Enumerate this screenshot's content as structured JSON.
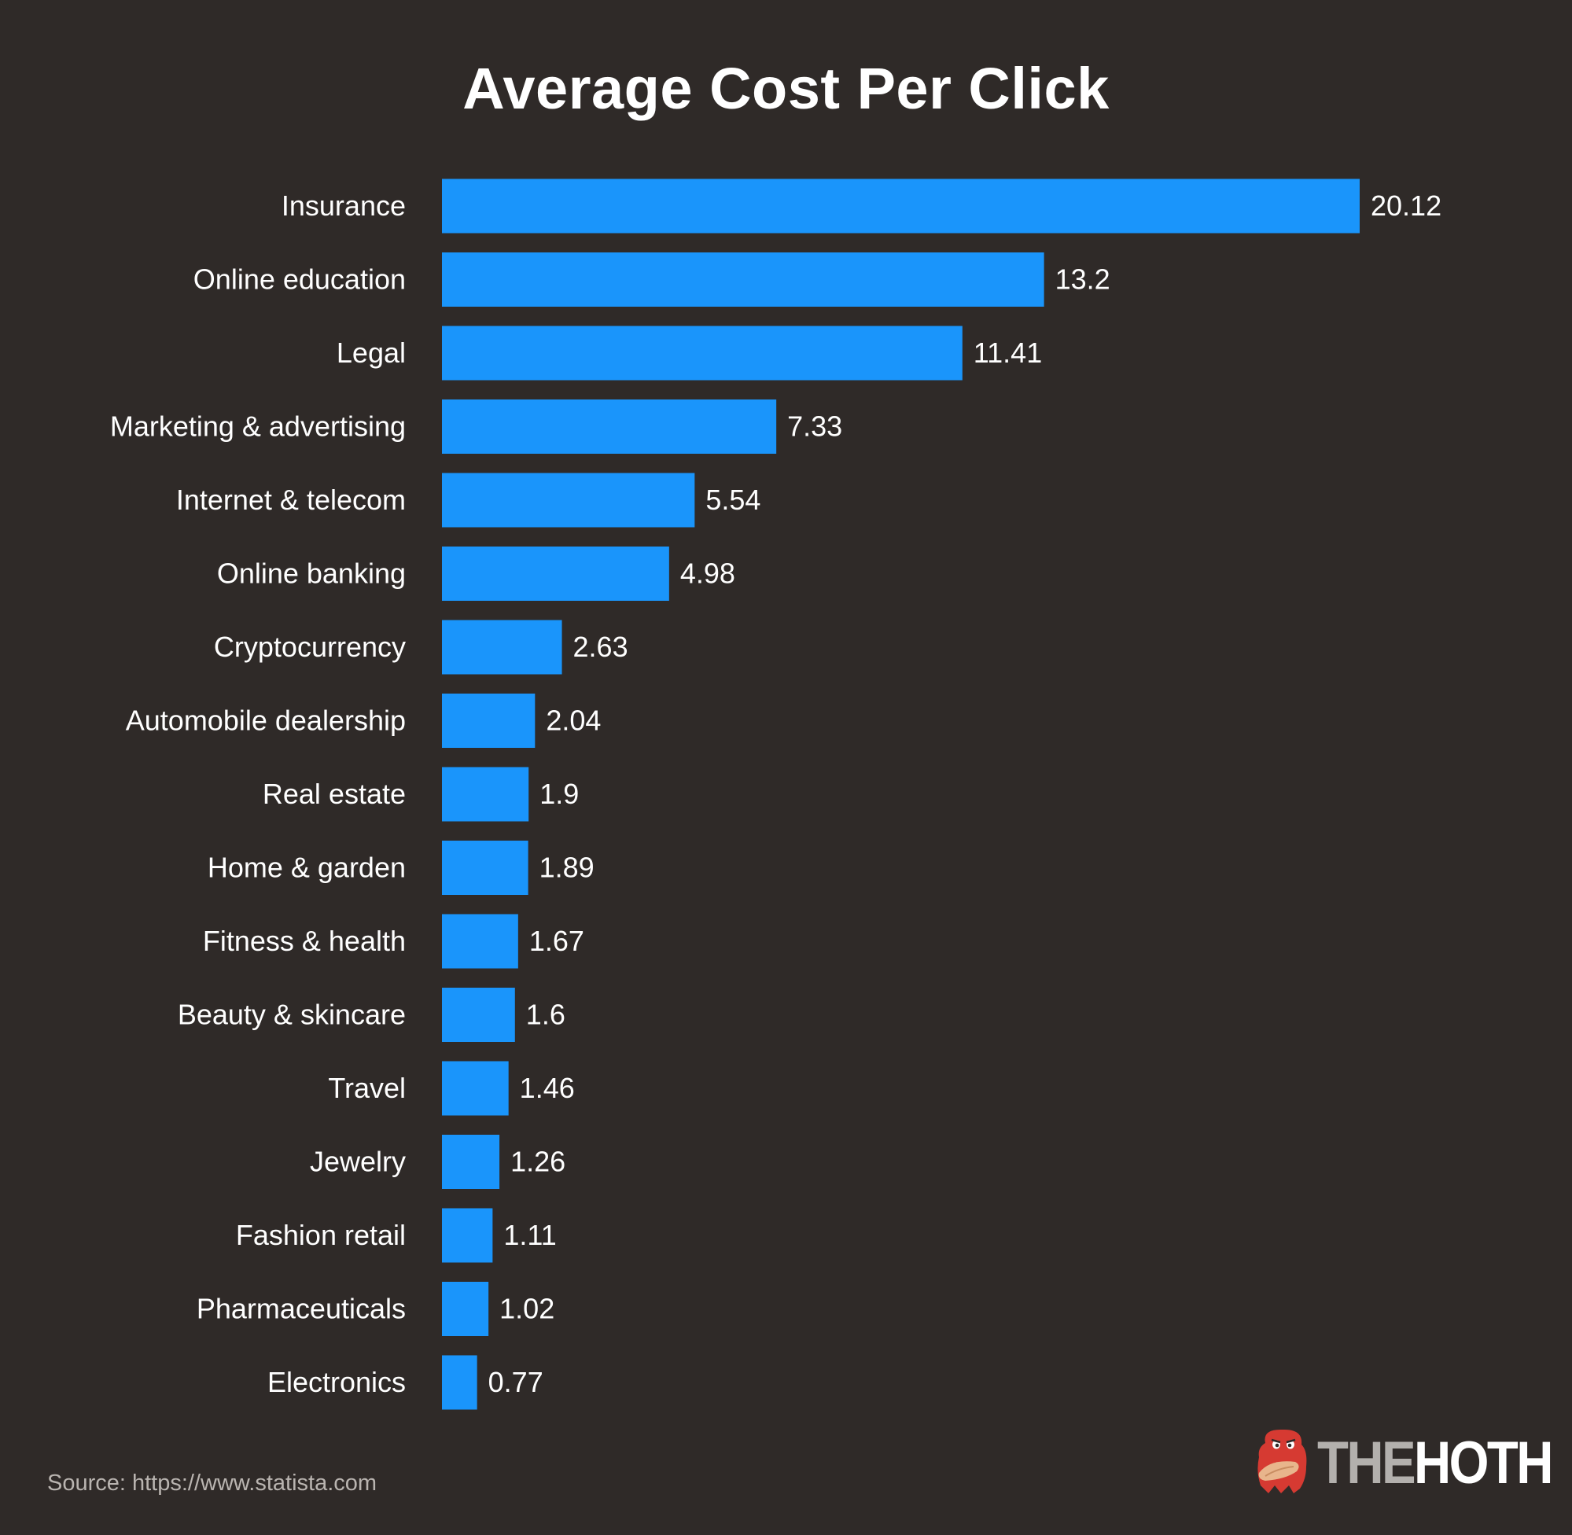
{
  "chart_data": {
    "type": "bar",
    "orientation": "horizontal",
    "title": "Average Cost Per Click",
    "categories": [
      "Insurance",
      "Online education",
      "Legal",
      "Marketing & advertising",
      "Internet & telecom",
      "Online banking",
      "Cryptocurrency",
      "Automobile dealership",
      "Real estate",
      "Home & garden",
      "Fitness & health",
      "Beauty & skincare",
      "Travel",
      "Jewelry",
      "Fashion retail",
      "Pharmaceuticals",
      "Electronics"
    ],
    "values": [
      20.12,
      13.2,
      11.41,
      7.33,
      5.54,
      4.98,
      2.63,
      2.04,
      1.9,
      1.89,
      1.67,
      1.6,
      1.46,
      1.26,
      1.11,
      1.02,
      0.77
    ],
    "data_labels": [
      "20.12",
      "13.2",
      "11.41",
      "7.33",
      "5.54",
      "4.98",
      "2.63",
      "2.04",
      "1.9",
      "1.89",
      "1.67",
      "1.6",
      "1.46",
      "1.26",
      "1.11",
      "1.02",
      "0.77"
    ],
    "xlim": [
      0,
      20.12
    ],
    "grid": false,
    "legend": "none",
    "bar_color": "#1a95fb",
    "background_color": "#2f2a28",
    "label_color": "#ffffff"
  },
  "source": "Source: https://www.statista.com",
  "brand": {
    "the": "THE",
    "hoth": "HOTH",
    "mascot_icon": "red-hoth-monster-logo"
  }
}
